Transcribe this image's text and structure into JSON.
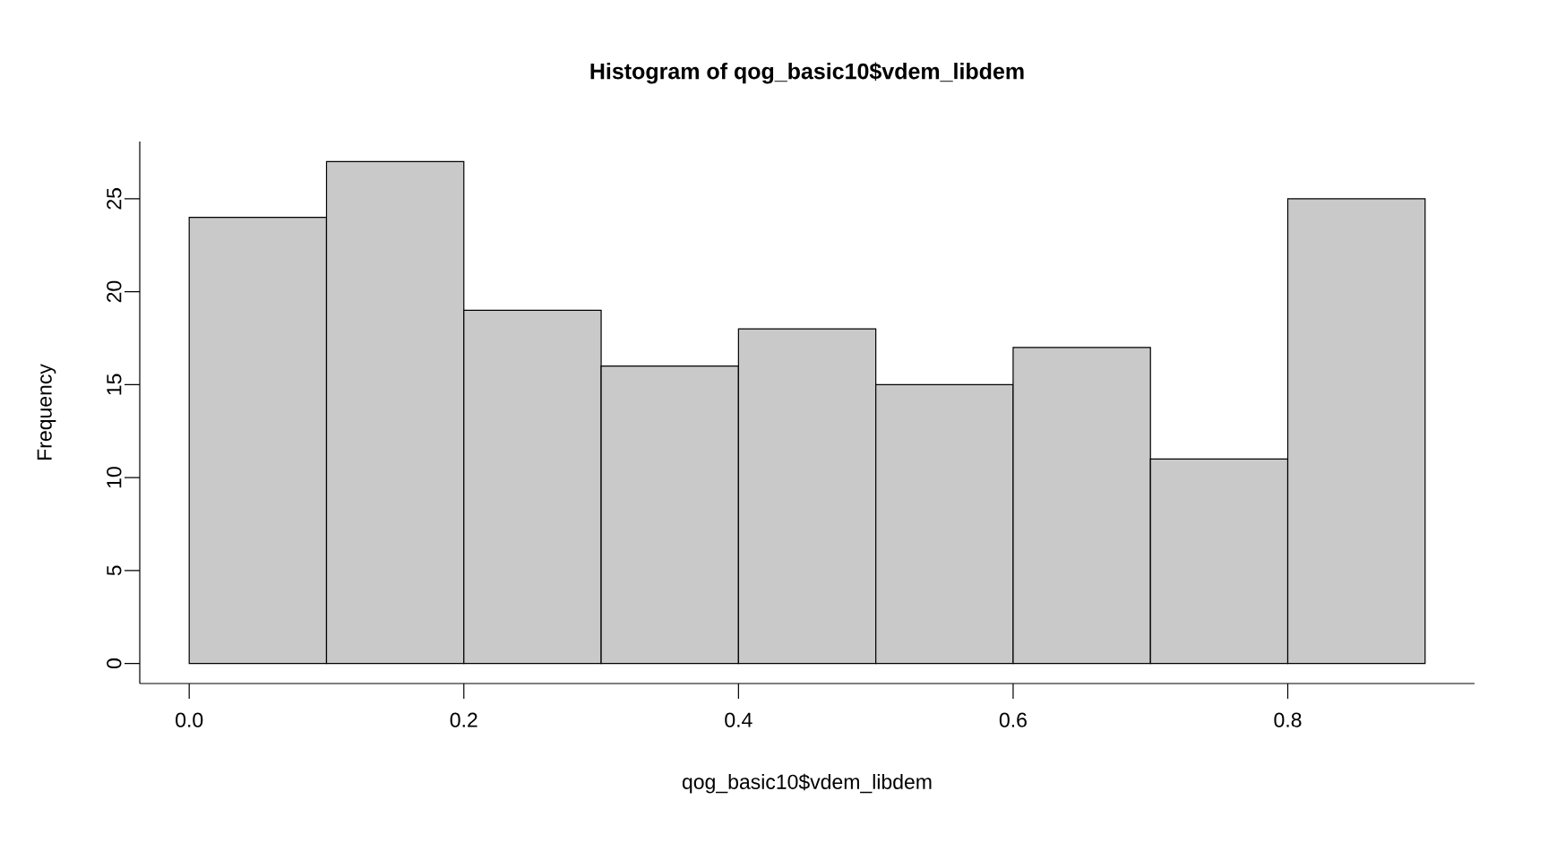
{
  "chart_data": {
    "type": "histogram",
    "title": "Histogram of qog_basic10$vdem_libdem",
    "xlabel": "qog_basic10$vdem_libdem",
    "ylabel": "Frequency",
    "bins": [
      0,
      0.1,
      0.2,
      0.3,
      0.4,
      0.5,
      0.6,
      0.7,
      0.8,
      0.9
    ],
    "values": [
      24,
      27,
      19,
      16,
      18,
      15,
      17,
      11,
      25
    ],
    "color": "#c9c9c9",
    "xlim": [
      -0.036,
      0.936
    ],
    "ylim": [
      -1.08,
      28.08
    ],
    "xticks": [
      {
        "value": 0,
        "label": "0.0"
      },
      {
        "value": 0.2,
        "label": "0.2"
      },
      {
        "value": 0.4,
        "label": "0.4"
      },
      {
        "value": 0.6,
        "label": "0.6"
      },
      {
        "value": 0.8,
        "label": "0.8"
      }
    ],
    "yticks": [
      0,
      5,
      10,
      15,
      20,
      25
    ]
  }
}
